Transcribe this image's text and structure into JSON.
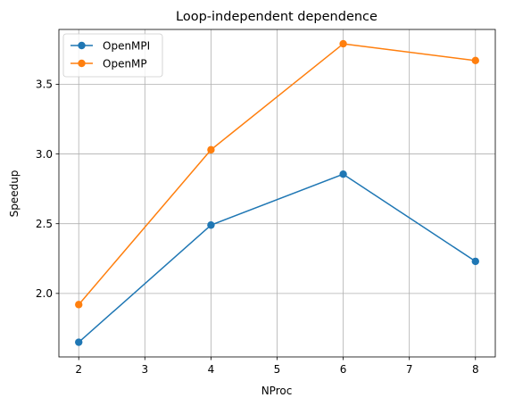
{
  "chart_data": {
    "type": "line",
    "title": "Loop-independent dependence",
    "xlabel": "NProc",
    "ylabel": "Speedup",
    "x": [
      2,
      4,
      6,
      8
    ],
    "xlim": [
      1.7,
      8.3
    ],
    "ylim": [
      1.5447,
      3.8929
    ],
    "xticks": [
      2,
      3,
      4,
      5,
      6,
      7,
      8
    ],
    "xtick_labels": [
      "2",
      "3",
      "4",
      "5",
      "6",
      "7",
      "8"
    ],
    "yticks": [
      2.0,
      2.5,
      3.0,
      3.5
    ],
    "ytick_labels": [
      "2.0",
      "2.5",
      "3.0",
      "3.5"
    ],
    "grid": true,
    "legend_position": "top-left",
    "series": [
      {
        "name": "OpenMPI",
        "values": [
          1.65,
          2.49,
          2.855,
          2.23
        ],
        "color": "#1f77b4",
        "marker": "circle"
      },
      {
        "name": "OpenMP",
        "values": [
          1.92,
          3.03,
          3.79,
          3.67
        ],
        "color": "#ff7f0e",
        "marker": "circle"
      }
    ]
  }
}
